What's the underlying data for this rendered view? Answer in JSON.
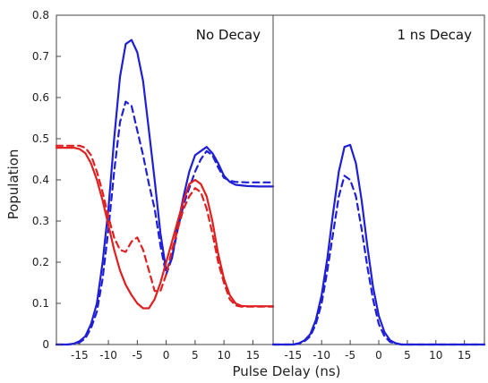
{
  "chart_data": {
    "type": "line",
    "ylabel": "Population",
    "xlabel": "Pulse Delay (ns)",
    "ylim": [
      0,
      0.8
    ],
    "yticks": [
      0,
      0.1,
      0.2,
      0.3,
      0.4,
      0.5,
      0.6,
      0.7,
      0.8
    ],
    "ytick_labels": [
      "0",
      "0.1",
      "0.2",
      "0.3",
      "0.4",
      "0.5",
      "0.6",
      "0.7",
      "0.8"
    ],
    "grid": false,
    "legend": "none",
    "panels": [
      {
        "title": "No Decay",
        "xlim": [
          -19,
          18.5
        ],
        "xticks": [
          -15,
          -10,
          -5,
          0,
          5,
          10,
          15
        ],
        "xtick_labels": [
          "-15",
          "-10",
          "-5",
          "0",
          "5",
          "10",
          "15"
        ],
        "series": [
          {
            "color": "#1f1fd6",
            "style": "solid",
            "x": [
              -19,
              -17,
              -16,
              -15,
              -14,
              -13,
              -12,
              -11,
              -10,
              -9,
              -8,
              -7,
              -6,
              -5,
              -4,
              -3,
              -2,
              -1,
              0,
              1,
              2,
              3,
              4,
              5,
              6,
              7,
              8,
              9,
              10,
              11,
              12,
              14,
              16,
              18.5
            ],
            "y": [
              0,
              0,
              0.002,
              0.008,
              0.02,
              0.05,
              0.1,
              0.2,
              0.33,
              0.5,
              0.65,
              0.73,
              0.74,
              0.71,
              0.64,
              0.52,
              0.4,
              0.27,
              0.18,
              0.21,
              0.29,
              0.36,
              0.42,
              0.46,
              0.47,
              0.48,
              0.465,
              0.44,
              0.41,
              0.395,
              0.388,
              0.385,
              0.384,
              0.384
            ]
          },
          {
            "color": "#1f1fd6",
            "style": "dashed",
            "x": [
              -19,
              -17,
              -16,
              -15,
              -14,
              -13,
              -12,
              -11,
              -10,
              -9,
              -8,
              -7,
              -6,
              -5,
              -4,
              -3,
              -2,
              -1,
              0,
              1,
              2,
              3,
              4,
              5,
              6,
              7,
              8,
              9,
              10,
              11,
              12,
              14,
              16,
              18.5
            ],
            "y": [
              0,
              0,
              0.002,
              0.005,
              0.015,
              0.04,
              0.08,
              0.16,
              0.28,
              0.42,
              0.54,
              0.59,
              0.58,
              0.52,
              0.46,
              0.39,
              0.33,
              0.24,
              0.17,
              0.21,
              0.28,
              0.34,
              0.38,
              0.42,
              0.45,
              0.47,
              0.46,
              0.43,
              0.405,
              0.398,
              0.395,
              0.394,
              0.394,
              0.394
            ]
          },
          {
            "color": "#e02020",
            "style": "solid",
            "x": [
              -19,
              -16,
              -15,
              -14,
              -13,
              -12,
              -11,
              -10,
              -9,
              -8,
              -7,
              -6,
              -5,
              -4,
              -3,
              -2,
              -1,
              0,
              1,
              2,
              3,
              4,
              5,
              6,
              7,
              8,
              9,
              10,
              11,
              12,
              13,
              14,
              16,
              18.5
            ],
            "y": [
              0.478,
              0.478,
              0.475,
              0.465,
              0.44,
              0.4,
              0.35,
              0.29,
              0.23,
              0.18,
              0.145,
              0.12,
              0.1,
              0.088,
              0.088,
              0.11,
              0.15,
              0.2,
              0.25,
              0.3,
              0.35,
              0.39,
              0.4,
              0.39,
              0.36,
              0.3,
              0.22,
              0.16,
              0.12,
              0.1,
              0.094,
              0.093,
              0.093,
              0.093
            ]
          },
          {
            "color": "#e02020",
            "style": "dashed",
            "x": [
              -19,
              -16,
              -15,
              -14,
              -13,
              -12,
              -11,
              -10,
              -9,
              -8,
              -7,
              -6,
              -5,
              -4,
              -3,
              -2,
              -1,
              0,
              1,
              2,
              3,
              4,
              5,
              6,
              7,
              8,
              9,
              10,
              11,
              12,
              13,
              14,
              16,
              18.5
            ],
            "y": [
              0.483,
              0.483,
              0.483,
              0.478,
              0.46,
              0.42,
              0.37,
              0.31,
              0.26,
              0.23,
              0.225,
              0.25,
              0.26,
              0.23,
              0.18,
              0.13,
              0.13,
              0.17,
              0.23,
              0.28,
              0.33,
              0.36,
              0.38,
              0.37,
              0.33,
              0.27,
              0.2,
              0.15,
              0.11,
              0.095,
              0.092,
              0.092,
              0.092,
              0.092
            ]
          }
        ]
      },
      {
        "title": "1 ns Decay",
        "xlim": [
          -18.5,
          18.5
        ],
        "xticks": [
          -15,
          -10,
          -5,
          0,
          5,
          10,
          15
        ],
        "xtick_labels": [
          "-15",
          "-10",
          "-5",
          "0",
          "5",
          "10",
          "15"
        ],
        "series": [
          {
            "color": "#1f1fd6",
            "style": "solid",
            "x": [
              -18.5,
              -15,
              -14,
              -13,
              -12,
              -11,
              -10,
              -9,
              -8,
              -7,
              -6,
              -5,
              -4,
              -3,
              -2,
              -1,
              0,
              1,
              2,
              3,
              4,
              5,
              18.5
            ],
            "y": [
              0,
              0,
              0.003,
              0.01,
              0.025,
              0.06,
              0.12,
              0.21,
              0.32,
              0.42,
              0.48,
              0.485,
              0.44,
              0.35,
              0.24,
              0.14,
              0.07,
              0.03,
              0.01,
              0.003,
              0,
              0,
              0
            ]
          },
          {
            "color": "#1f1fd6",
            "style": "dashed",
            "x": [
              -18.5,
              -15,
              -14,
              -13,
              -12,
              -11,
              -10,
              -9,
              -8,
              -7,
              -6,
              -5,
              -4,
              -3,
              -2,
              -1,
              0,
              1,
              2,
              3,
              4,
              5,
              18.5
            ],
            "y": [
              0,
              0,
              0.002,
              0.008,
              0.02,
              0.05,
              0.1,
              0.18,
              0.27,
              0.36,
              0.41,
              0.4,
              0.36,
              0.28,
              0.19,
              0.11,
              0.05,
              0.02,
              0.006,
              0.002,
              0,
              0,
              0
            ]
          }
        ]
      }
    ]
  }
}
